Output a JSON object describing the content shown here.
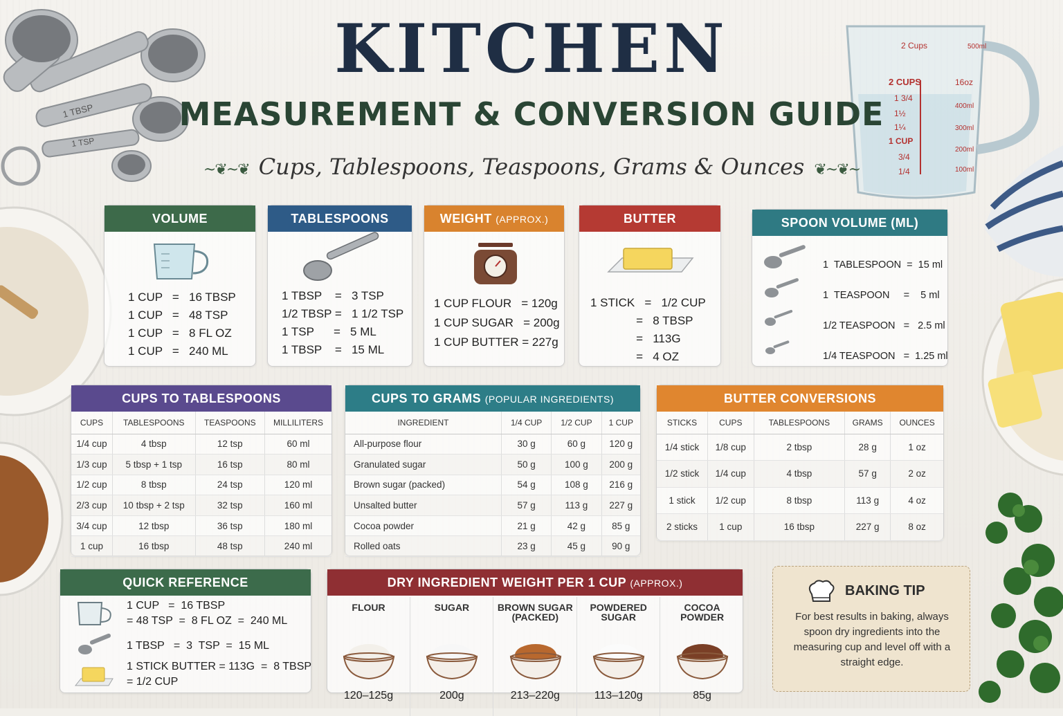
{
  "header": {
    "title": "KITCHEN",
    "subtitle": "MEASUREMENT & CONVERSION GUIDE",
    "tagline": "Cups, Tablespoons, Teaspoons, Grams & Ounces"
  },
  "measuring_cup_marks": {
    "left": [
      "2 CUPS",
      "1 3/4",
      "1½",
      "1¼",
      "1 CUP",
      "3/4",
      "1/4"
    ],
    "top_left": "2 Cups",
    "top_right": "500ml",
    "right": [
      "16oz",
      "400ml",
      "300ml",
      "200ml",
      "100ml"
    ]
  },
  "spoons_labels": [
    "1 TBSP",
    "1 TSP"
  ],
  "volume": {
    "title": "VOLUME",
    "lines": [
      "1 CUP   =   16 TBSP",
      "1 CUP   =   48 TSP",
      "1 CUP   =   8 FL OZ",
      "1 CUP   =   240 ML"
    ]
  },
  "tablespoons": {
    "title": "TABLESPOONS",
    "lines": [
      "1 TBSP    =   3 TSP",
      "1/2 TBSP =   1 1/2 TSP",
      "1 TSP      =   5 ML",
      "1 TBSP    =   15 ML"
    ]
  },
  "weight": {
    "title": "WEIGHT",
    "title_note": "(APPROX.)",
    "lines": [
      "1 CUP FLOUR   = 120g",
      "1 CUP SUGAR   = 200g",
      "1 CUP BUTTER = 227g"
    ]
  },
  "butter": {
    "title": "BUTTER",
    "lines": [
      "1 STICK   =   1/2 CUP",
      "              =   8 TBSP",
      "              =   113G",
      "              =   4 OZ"
    ]
  },
  "spoon_volume": {
    "title": "SPOON VOLUME (ML)",
    "rows": [
      {
        "name": "1  TABLESPOON  =  15 ml"
      },
      {
        "name": "1  TEASPOON     =    5 ml"
      },
      {
        "name": "1/2 TEASPOON   =   2.5 ml"
      },
      {
        "name": "1/4 TEASPOON   =  1.25 ml"
      }
    ]
  },
  "cups_to_tbsp": {
    "title": "CUPS TO TABLESPOONS",
    "headers": [
      "CUPS",
      "TABLESPOONS",
      "TEASPOONS",
      "MILLILITERS"
    ],
    "rows": [
      [
        "1/4 cup",
        "4 tbsp",
        "12 tsp",
        "60 ml"
      ],
      [
        "1/3 cup",
        "5 tbsp + 1 tsp",
        "16 tsp",
        "80 ml"
      ],
      [
        "1/2 cup",
        "8 tbsp",
        "24 tsp",
        "120 ml"
      ],
      [
        "2/3 cup",
        "10 tbsp + 2 tsp",
        "32 tsp",
        "160 ml"
      ],
      [
        "3/4 cup",
        "12 tbsp",
        "36 tsp",
        "180 ml"
      ],
      [
        "1 cup",
        "16 tbsp",
        "48 tsp",
        "240 ml"
      ]
    ]
  },
  "cups_to_grams": {
    "title": "CUPS TO GRAMS",
    "title_note": "(POPULAR INGREDIENTS)",
    "headers": [
      "INGREDIENT",
      "1/4 CUP",
      "1/2 CUP",
      "1 CUP"
    ],
    "rows": [
      [
        "All-purpose flour",
        "30 g",
        "60 g",
        "120 g"
      ],
      [
        "Granulated sugar",
        "50 g",
        "100 g",
        "200 g"
      ],
      [
        "Brown sugar (packed)",
        "54 g",
        "108 g",
        "216 g"
      ],
      [
        "Unsalted butter",
        "57 g",
        "113 g",
        "227 g"
      ],
      [
        "Cocoa powder",
        "21 g",
        "42 g",
        "85 g"
      ],
      [
        "Rolled oats",
        "23 g",
        "45 g",
        "90 g"
      ]
    ]
  },
  "butter_conversions": {
    "title": "BUTTER CONVERSIONS",
    "headers": [
      "STICKS",
      "CUPS",
      "TABLESPOONS",
      "GRAMS",
      "OUNCES"
    ],
    "rows": [
      [
        "1/4 stick",
        "1/8 cup",
        "2 tbsp",
        "28 g",
        "1 oz"
      ],
      [
        "1/2 stick",
        "1/4 cup",
        "4 tbsp",
        "57 g",
        "2 oz"
      ],
      [
        "1 stick",
        "1/2 cup",
        "8 tbsp",
        "113 g",
        "4 oz"
      ],
      [
        "2 sticks",
        "1 cup",
        "16 tbsp",
        "227 g",
        "8 oz"
      ]
    ]
  },
  "quick_reference": {
    "title": "QUICK REFERENCE",
    "line1a": "1 CUP   =  16 TBSP",
    "line1b": "= 48 TSP  =  8 FL OZ  =  240 ML",
    "line2": "1 TBSP   =  3  TSP  =  15 ML",
    "line3a": "1 STICK BUTTER = 113G  =  8 TBSP",
    "line3b": "= 1/2 CUP"
  },
  "dry_weight": {
    "title": "DRY INGREDIENT WEIGHT PER 1 CUP",
    "title_note": "(APPROX.)",
    "items": [
      {
        "name": "FLOUR",
        "value": "120–125g",
        "color": "#f3f0ea"
      },
      {
        "name": "SUGAR",
        "value": "200g",
        "color": "#f7f7f7"
      },
      {
        "name": "BROWN SUGAR\n(PACKED)",
        "value": "213–220g",
        "color": "#b8682e"
      },
      {
        "name": "POWDERED\nSUGAR",
        "value": "113–120g",
        "color": "#fbfbfb"
      },
      {
        "name": "COCOA\nPOWDER",
        "value": "85g",
        "color": "#7a3f26"
      }
    ]
  },
  "tip": {
    "title": "BAKING TIP",
    "text": "For best results in baking, always spoon dry ingredients into the measuring cup and level off with a straight edge."
  },
  "colors": {
    "title": "#1f2e44",
    "subtitle": "#2a4534"
  }
}
